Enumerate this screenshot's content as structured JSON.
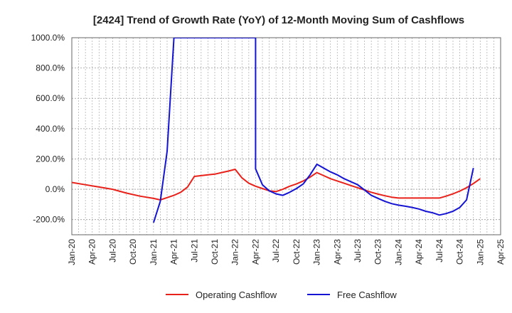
{
  "chart_data": {
    "type": "line",
    "title": "[2424]  Trend of Growth Rate (YoY) of 12-Month Moving Sum of Cashflows",
    "xlabel": "",
    "ylabel": "",
    "ylim": [
      -300,
      1000
    ],
    "yticks": [
      {
        "value": 1000,
        "label": "1000.0%"
      },
      {
        "value": 800,
        "label": "800.0%"
      },
      {
        "value": 600,
        "label": "600.0%"
      },
      {
        "value": 400,
        "label": "400.0%"
      },
      {
        "value": 200,
        "label": "200.0%"
      },
      {
        "value": 0,
        "label": "0.0%"
      },
      {
        "value": -200,
        "label": "-200.0%"
      }
    ],
    "xrange": [
      "2020-01",
      "2025-04"
    ],
    "xticks": [
      "Jan-20",
      "Apr-20",
      "Jul-20",
      "Oct-20",
      "Jan-21",
      "Apr-21",
      "Jul-21",
      "Oct-21",
      "Jan-22",
      "Apr-22",
      "Jul-22",
      "Oct-22",
      "Jan-23",
      "Apr-23",
      "Jul-23",
      "Oct-23",
      "Jan-24",
      "Apr-24",
      "Jul-24",
      "Oct-24",
      "Jan-25",
      "Apr-25"
    ],
    "grid": true,
    "legend_position": "bottom",
    "series": [
      {
        "name": "Operating Cashflow",
        "color": "#e8221b",
        "points": [
          [
            "2020-01",
            45
          ],
          [
            "2020-03",
            30
          ],
          [
            "2020-05",
            15
          ],
          [
            "2020-07",
            0
          ],
          [
            "2020-09",
            -25
          ],
          [
            "2020-11",
            -45
          ],
          [
            "2021-01",
            -60
          ],
          [
            "2021-02",
            -70
          ],
          [
            "2021-03",
            -55
          ],
          [
            "2021-04",
            -40
          ],
          [
            "2021-05",
            -20
          ],
          [
            "2021-06",
            15
          ],
          [
            "2021-07",
            85
          ],
          [
            "2021-08",
            90
          ],
          [
            "2021-09",
            95
          ],
          [
            "2021-10",
            100
          ],
          [
            "2021-11",
            110
          ],
          [
            "2021-12",
            120
          ],
          [
            "2022-01",
            132
          ],
          [
            "2022-02",
            75
          ],
          [
            "2022-03",
            40
          ],
          [
            "2022-04",
            20
          ],
          [
            "2022-05",
            5
          ],
          [
            "2022-06",
            -10
          ],
          [
            "2022-07",
            -15
          ],
          [
            "2022-08",
            0
          ],
          [
            "2022-09",
            20
          ],
          [
            "2022-10",
            35
          ],
          [
            "2022-11",
            55
          ],
          [
            "2022-12",
            80
          ],
          [
            "2023-01",
            110
          ],
          [
            "2023-02",
            90
          ],
          [
            "2023-03",
            70
          ],
          [
            "2023-04",
            55
          ],
          [
            "2023-05",
            40
          ],
          [
            "2023-06",
            25
          ],
          [
            "2023-07",
            10
          ],
          [
            "2023-08",
            -5
          ],
          [
            "2023-09",
            -20
          ],
          [
            "2023-10",
            -32
          ],
          [
            "2023-11",
            -43
          ],
          [
            "2023-12",
            -52
          ],
          [
            "2024-01",
            -58
          ],
          [
            "2024-02",
            -58
          ],
          [
            "2024-03",
            -58
          ],
          [
            "2024-04",
            -58
          ],
          [
            "2024-05",
            -58
          ],
          [
            "2024-06",
            -58
          ],
          [
            "2024-07",
            -58
          ],
          [
            "2024-08",
            -45
          ],
          [
            "2024-09",
            -30
          ],
          [
            "2024-10",
            -12
          ],
          [
            "2024-11",
            10
          ],
          [
            "2024-12",
            38
          ],
          [
            "2025-01",
            70
          ]
        ]
      },
      {
        "name": "Free Cashflow",
        "color": "#1414d2",
        "points": [
          [
            "2021-01",
            -220
          ],
          [
            "2021-02",
            -80
          ],
          [
            "2021-03",
            250
          ],
          [
            "2021-04",
            1000
          ],
          [
            "2022-04",
            1000
          ],
          [
            "2022-04",
            135
          ],
          [
            "2022-05",
            30
          ],
          [
            "2022-06",
            -10
          ],
          [
            "2022-07",
            -30
          ],
          [
            "2022-08",
            -40
          ],
          [
            "2022-09",
            -20
          ],
          [
            "2022-10",
            5
          ],
          [
            "2022-11",
            35
          ],
          [
            "2022-12",
            95
          ],
          [
            "2023-01",
            165
          ],
          [
            "2023-02",
            140
          ],
          [
            "2023-03",
            115
          ],
          [
            "2023-04",
            95
          ],
          [
            "2023-05",
            70
          ],
          [
            "2023-06",
            50
          ],
          [
            "2023-07",
            30
          ],
          [
            "2023-08",
            -5
          ],
          [
            "2023-09",
            -40
          ],
          [
            "2023-10",
            -60
          ],
          [
            "2023-11",
            -80
          ],
          [
            "2023-12",
            -95
          ],
          [
            "2024-01",
            -105
          ],
          [
            "2024-02",
            -112
          ],
          [
            "2024-03",
            -120
          ],
          [
            "2024-04",
            -130
          ],
          [
            "2024-05",
            -145
          ],
          [
            "2024-06",
            -155
          ],
          [
            "2024-07",
            -170
          ],
          [
            "2024-08",
            -160
          ],
          [
            "2024-09",
            -145
          ],
          [
            "2024-10",
            -120
          ],
          [
            "2024-11",
            -70
          ],
          [
            "2024-12",
            140
          ]
        ]
      }
    ]
  }
}
